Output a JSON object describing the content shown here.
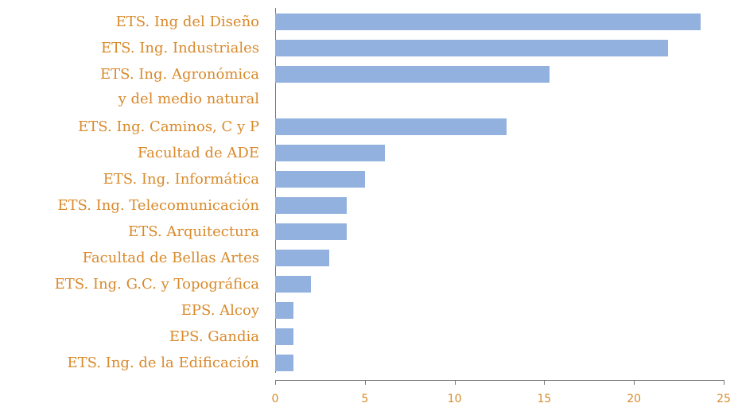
{
  "chart_data": {
    "type": "bar",
    "orientation": "horizontal",
    "categories": [
      "ETS. Ing del Diseño",
      "ETS. Ing. Industriales",
      "ETS. Ing. Agronómica\ny del medio natural",
      "ETS. Ing. Caminos, C y P",
      "Facultad de ADE",
      "ETS. Ing. Informática",
      "ETS. Ing. Telecomunicación",
      "ETS. Arquitectura",
      "Facultad de Bellas Artes",
      "ETS. Ing. G.C. y Topográfica",
      "EPS. Alcoy",
      "EPS. Gandia",
      "ETS. Ing. de la Edificación"
    ],
    "values": [
      23.7,
      21.9,
      15.3,
      12.9,
      6.1,
      5,
      4,
      4,
      3,
      2,
      1,
      1,
      1
    ],
    "color": "#93b1df",
    "xlim": [
      0,
      25
    ],
    "xticks": [
      0,
      5,
      10,
      15,
      20,
      25
    ],
    "grid": false
  }
}
